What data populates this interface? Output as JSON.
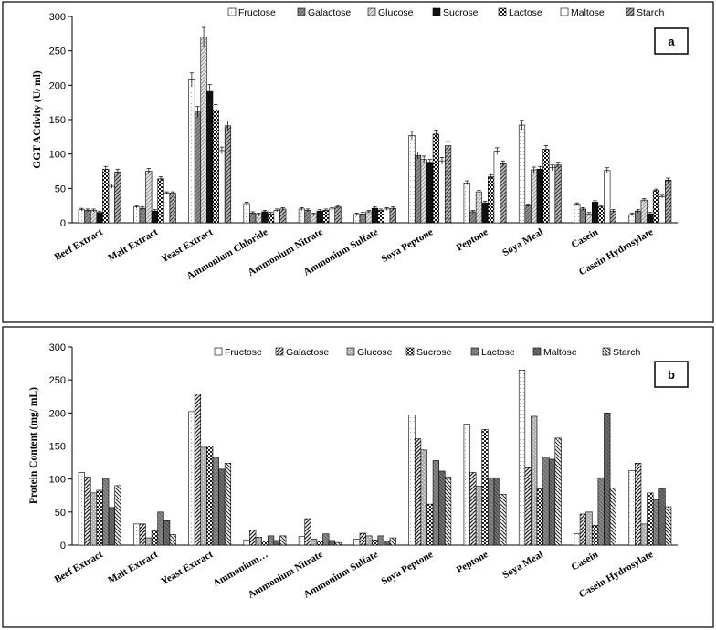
{
  "chart_data": [
    {
      "type": "bar",
      "panel_label": "a",
      "ylabel": "GGT ACtivity (U/ ml)",
      "ylim": [
        0,
        300
      ],
      "yticks": [
        0,
        50,
        100,
        150,
        200,
        250,
        300
      ],
      "legend_placement": "top",
      "categories": [
        "Beef Extract",
        "Malt Extract",
        "Yeast Extract",
        "Ammonium Chloride",
        "Ammonium Nitrate",
        "Ammonium Sulfate",
        "Soya Peptone",
        "Peptone",
        "Soya Meal",
        "Casein",
        "Casein Hydrosylate"
      ],
      "series": [
        {
          "name": "Fructose",
          "values": [
            19,
            23,
            208,
            28,
            20,
            12,
            127,
            58,
            142,
            27,
            12
          ]
        },
        {
          "name": "Galactose",
          "values": [
            18,
            21,
            161,
            14,
            18,
            13,
            98,
            16,
            25,
            20,
            17
          ]
        },
        {
          "name": "Glucose",
          "values": [
            18,
            75,
            270,
            12,
            12,
            16,
            92,
            45,
            77,
            13,
            33
          ]
        },
        {
          "name": "Sucrose",
          "values": [
            15,
            17,
            191,
            16,
            17,
            21,
            88,
            29,
            78,
            30,
            13
          ]
        },
        {
          "name": "Lactose",
          "values": [
            78,
            64,
            164,
            13,
            18,
            18,
            129,
            67,
            107,
            23,
            47
          ]
        },
        {
          "name": "Maltose",
          "values": [
            53,
            43,
            105,
            18,
            20,
            20,
            90,
            104,
            80,
            76,
            38
          ]
        },
        {
          "name": "Starch",
          "values": [
            74,
            43,
            141,
            20,
            23,
            21,
            112,
            86,
            84,
            17,
            62
          ]
        }
      ]
    },
    {
      "type": "bar",
      "panel_label": "b",
      "ylabel": "Protein Content (mg/ mL)",
      "ylim": [
        0,
        300
      ],
      "yticks": [
        0,
        50,
        100,
        150,
        200,
        250,
        300
      ],
      "legend_placement": "top",
      "categories": [
        "Beef Extract",
        "Malt Extract",
        "Yeast Extract",
        "Ammonium…",
        "Ammonium Nitrate",
        "Ammonium Sulfate",
        "Soya Peptone",
        "Peptone",
        "Soya Meal",
        "Casein",
        "Casein Hydrosylate"
      ],
      "series": [
        {
          "name": "Fructose",
          "values": [
            110,
            32,
            202,
            8,
            13,
            9,
            197,
            183,
            265,
            17,
            113
          ]
        },
        {
          "name": "Galactose",
          "values": [
            103,
            32,
            229,
            23,
            40,
            18,
            161,
            110,
            117,
            47,
            124
          ]
        },
        {
          "name": "Glucose",
          "values": [
            79,
            11,
            148,
            12,
            9,
            14,
            144,
            89,
            195,
            50,
            32
          ]
        },
        {
          "name": "Sucrose",
          "values": [
            83,
            22,
            150,
            6,
            6,
            8,
            62,
            175,
            85,
            30,
            79
          ]
        },
        {
          "name": "Lactose",
          "values": [
            101,
            50,
            133,
            14,
            17,
            14,
            128,
            102,
            133,
            102,
            69
          ]
        },
        {
          "name": "Maltose",
          "values": [
            57,
            37,
            115,
            7,
            7,
            6,
            112,
            102,
            130,
            200,
            85
          ]
        },
        {
          "name": "Starch",
          "values": [
            90,
            16,
            124,
            14,
            4,
            11,
            103,
            77,
            162,
            86,
            58
          ]
        }
      ]
    }
  ]
}
